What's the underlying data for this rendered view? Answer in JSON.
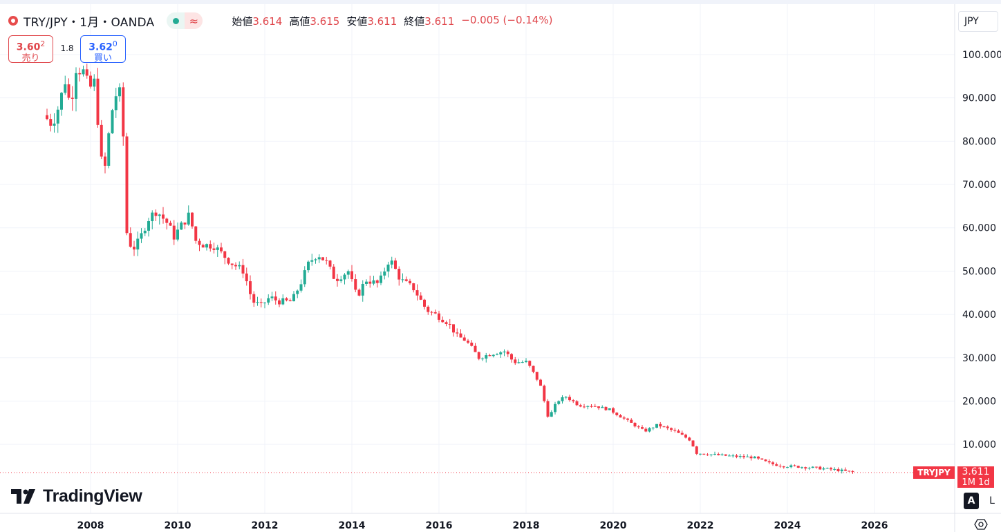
{
  "header": {
    "title": "TRY/JPY・1月・OANDA",
    "ohlc": [
      {
        "label": "始値",
        "value": "3.614"
      },
      {
        "label": "高値",
        "value": "3.615"
      },
      {
        "label": "安値",
        "value": "3.611"
      },
      {
        "label": "終値",
        "value": "3.611"
      }
    ],
    "change": "−0.005 (−0.14%)"
  },
  "trade": {
    "sell_price": "3.60",
    "sell_price_small": "2",
    "sell_label": "売り",
    "spread": "1.8",
    "buy_price": "3.62",
    "buy_price_small": "0",
    "buy_label": "買い"
  },
  "currency_button": "JPY",
  "last_price": {
    "symbol": "TRYJPY",
    "value": "3.611",
    "timeframe": "1M 1d"
  },
  "scale_buttons": {
    "auto": "A",
    "log": "L"
  },
  "brand": "TradingView",
  "colors": {
    "up": "#22ab94",
    "down": "#f23645",
    "last": "#f23645"
  },
  "chart_data": {
    "type": "candlestick",
    "interval": "1M",
    "ylim": [
      0,
      106
    ],
    "xlim": [
      2006.0,
      2027.5
    ],
    "y_ticks": [
      "10.000",
      "20.000",
      "30.000",
      "40.000",
      "50.000",
      "60.000",
      "70.000",
      "80.000",
      "90.000",
      "100.000"
    ],
    "x_ticks": [
      "2008",
      "2010",
      "2012",
      "2014",
      "2016",
      "2018",
      "2020",
      "2022",
      "2024",
      "2026"
    ],
    "grid": true,
    "last_value": 3.611,
    "anchors": [
      [
        2007.0,
        86
      ],
      [
        2007.2,
        84
      ],
      [
        2007.35,
        88
      ],
      [
        2007.5,
        94
      ],
      [
        2007.62,
        88
      ],
      [
        2007.75,
        97
      ],
      [
        2007.92,
        96
      ],
      [
        2008.05,
        92
      ],
      [
        2008.2,
        94
      ],
      [
        2008.3,
        76
      ],
      [
        2008.42,
        74
      ],
      [
        2008.55,
        86
      ],
      [
        2008.7,
        92
      ],
      [
        2008.8,
        90
      ],
      [
        2008.92,
        58
      ],
      [
        2009.05,
        55
      ],
      [
        2009.2,
        57
      ],
      [
        2009.4,
        62
      ],
      [
        2009.6,
        64
      ],
      [
        2009.85,
        61
      ],
      [
        2010.0,
        58
      ],
      [
        2010.2,
        61
      ],
      [
        2010.35,
        63
      ],
      [
        2010.5,
        57
      ],
      [
        2010.7,
        56
      ],
      [
        2010.9,
        56
      ],
      [
        2011.1,
        54
      ],
      [
        2011.3,
        52
      ],
      [
        2011.6,
        50
      ],
      [
        2011.8,
        43
      ],
      [
        2012.0,
        42
      ],
      [
        2012.2,
        44
      ],
      [
        2012.4,
        43
      ],
      [
        2012.7,
        43
      ],
      [
        2012.9,
        47
      ],
      [
        2013.1,
        52
      ],
      [
        2013.3,
        54
      ],
      [
        2013.5,
        52
      ],
      [
        2013.7,
        48
      ],
      [
        2014.0,
        50
      ],
      [
        2014.2,
        44
      ],
      [
        2014.4,
        48
      ],
      [
        2014.7,
        47
      ],
      [
        2014.95,
        53
      ],
      [
        2015.2,
        48
      ],
      [
        2015.5,
        46
      ],
      [
        2015.8,
        41
      ],
      [
        2016.0,
        40
      ],
      [
        2016.3,
        38
      ],
      [
        2016.5,
        35
      ],
      [
        2016.7,
        34
      ],
      [
        2017.0,
        30
      ],
      [
        2017.3,
        31
      ],
      [
        2017.6,
        31.5
      ],
      [
        2017.8,
        29
      ],
      [
        2018.1,
        29
      ],
      [
        2018.4,
        24
      ],
      [
        2018.6,
        16
      ],
      [
        2018.8,
        20
      ],
      [
        2019.0,
        21
      ],
      [
        2019.3,
        19
      ],
      [
        2019.6,
        19
      ],
      [
        2020.0,
        18
      ],
      [
        2020.4,
        15.5
      ],
      [
        2020.8,
        13
      ],
      [
        2021.1,
        14.5
      ],
      [
        2021.5,
        13
      ],
      [
        2021.85,
        11
      ],
      [
        2022.0,
        8
      ],
      [
        2022.5,
        7.5
      ],
      [
        2022.9,
        7.2
      ],
      [
        2023.3,
        7
      ],
      [
        2023.7,
        5.5
      ],
      [
        2024.0,
        5
      ],
      [
        2024.4,
        4.8
      ],
      [
        2024.8,
        4.5
      ],
      [
        2025.2,
        4.1
      ],
      [
        2025.55,
        3.6
      ]
    ]
  }
}
